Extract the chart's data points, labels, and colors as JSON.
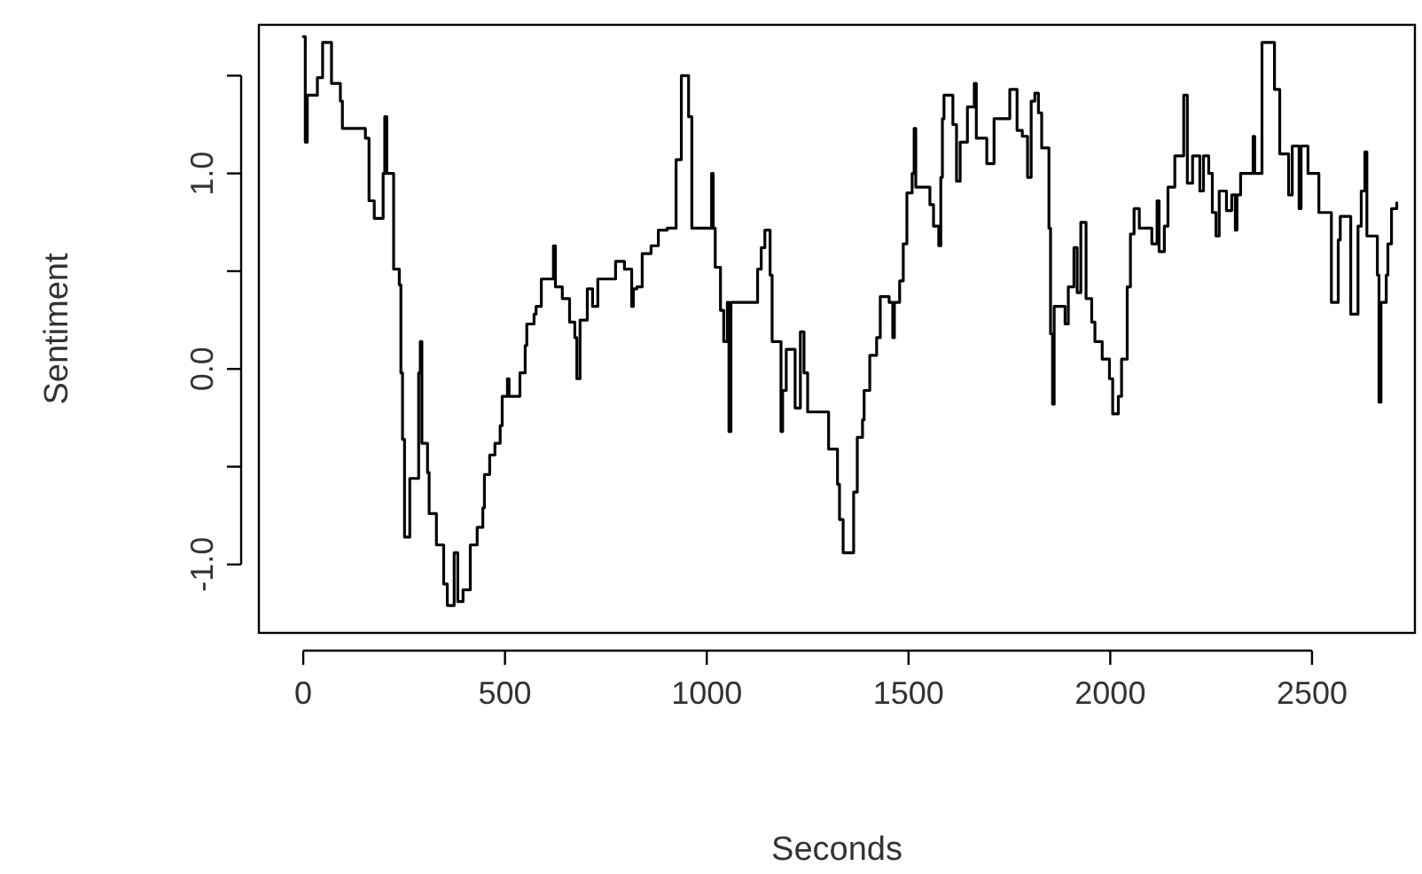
{
  "chart_data": {
    "type": "step",
    "xlabel": "Seconds",
    "ylabel": "Sentiment",
    "xlim": [
      -110,
      2755
    ],
    "ylim": [
      -1.35,
      1.76
    ],
    "xticks": [
      0,
      500,
      1000,
      1500,
      2000,
      2500
    ],
    "yticks": [
      {
        "value": -1,
        "label": "-1.0"
      },
      {
        "value": -0.5,
        "label": null
      },
      {
        "value": 0,
        "label": "0.0"
      },
      {
        "value": 0.5,
        "label": null
      },
      {
        "value": 1,
        "label": "1.0"
      },
      {
        "value": 1.5,
        "label": null
      }
    ],
    "grid": false,
    "marker": "none",
    "line_style": "solid",
    "series": [
      {
        "color": "#000000",
        "x": [
          0,
          5,
          10,
          35,
          48,
          70,
          92,
          97,
          154,
          163,
          176,
          198,
          202,
          207,
          224,
          238,
          242,
          246,
          251,
          264,
          286,
          290,
          294,
          308,
          312,
          330,
          348,
          357,
          374,
          383,
          396,
          414,
          431,
          445,
          449,
          462,
          475,
          488,
          493,
          506,
          510,
          537,
          550,
          554,
          572,
          577,
          590,
          620,
          625,
          642,
          660,
          673,
          678,
          686,
          704,
          717,
          730,
          774,
          796,
          814,
          818,
          827,
          840,
          862,
          880,
          902,
          924,
          937,
          955,
          963,
          1012,
          1016,
          1021,
          1034,
          1042,
          1051,
          1055,
          1060,
          1126,
          1135,
          1144,
          1157,
          1162,
          1184,
          1188,
          1197,
          1219,
          1232,
          1241,
          1250,
          1302,
          1324,
          1329,
          1338,
          1364,
          1373,
          1386,
          1390,
          1404,
          1421,
          1430,
          1452,
          1461,
          1465,
          1478,
          1487,
          1496,
          1509,
          1514,
          1518,
          1553,
          1562,
          1575,
          1580,
          1584,
          1588,
          1610,
          1619,
          1628,
          1646,
          1663,
          1668,
          1694,
          1712,
          1751,
          1769,
          1782,
          1795,
          1804,
          1813,
          1822,
          1830,
          1848,
          1852,
          1857,
          1861,
          1888,
          1896,
          1910,
          1918,
          1927,
          1940,
          1954,
          1962,
          1980,
          1998,
          2006,
          2020,
          2028,
          2042,
          2050,
          2059,
          2072,
          2103,
          2116,
          2121,
          2134,
          2143,
          2160,
          2182,
          2191,
          2204,
          2222,
          2231,
          2244,
          2253,
          2262,
          2270,
          2288,
          2301,
          2310,
          2314,
          2323,
          2354,
          2358,
          2376,
          2407,
          2420,
          2442,
          2451,
          2468,
          2473,
          2490,
          2517,
          2548,
          2565,
          2570,
          2596,
          2614,
          2622,
          2631,
          2636,
          2662,
          2666,
          2671,
          2684,
          2688,
          2697,
          2710
        ],
        "values": [
          1.7,
          1.16,
          1.4,
          1.49,
          1.67,
          1.46,
          1.37,
          1.23,
          1.18,
          0.86,
          0.77,
          1.0,
          1.29,
          1.0,
          0.51,
          0.43,
          -0.02,
          -0.36,
          -0.86,
          -0.56,
          -0.02,
          0.14,
          -0.38,
          -0.53,
          -0.74,
          -0.9,
          -1.1,
          -1.21,
          -0.94,
          -1.19,
          -1.13,
          -0.9,
          -0.81,
          -0.71,
          -0.54,
          -0.44,
          -0.38,
          -0.29,
          -0.14,
          -0.05,
          -0.14,
          -0.02,
          0.12,
          0.23,
          0.28,
          0.32,
          0.46,
          0.63,
          0.42,
          0.36,
          0.24,
          0.16,
          -0.05,
          0.25,
          0.41,
          0.32,
          0.46,
          0.55,
          0.51,
          0.32,
          0.41,
          0.42,
          0.59,
          0.63,
          0.71,
          0.72,
          1.07,
          1.5,
          1.29,
          0.72,
          1.0,
          0.72,
          0.52,
          0.3,
          0.14,
          0.34,
          -0.32,
          0.34,
          0.51,
          0.62,
          0.71,
          0.48,
          0.14,
          -0.32,
          -0.11,
          0.1,
          -0.2,
          0.19,
          -0.02,
          -0.22,
          -0.41,
          -0.59,
          -0.77,
          -0.94,
          -0.63,
          -0.35,
          -0.26,
          -0.11,
          0.07,
          0.16,
          0.37,
          0.34,
          0.16,
          0.34,
          0.45,
          0.64,
          0.9,
          1.0,
          1.23,
          0.93,
          0.84,
          0.73,
          0.63,
          0.98,
          1.28,
          1.4,
          1.25,
          0.96,
          1.16,
          1.34,
          1.46,
          1.18,
          1.05,
          1.28,
          1.43,
          1.22,
          1.19,
          0.98,
          1.37,
          1.41,
          1.31,
          1.13,
          0.72,
          0.18,
          -0.18,
          0.32,
          0.23,
          0.42,
          0.62,
          0.39,
          0.75,
          0.36,
          0.24,
          0.14,
          0.05,
          -0.05,
          -0.23,
          -0.14,
          0.05,
          0.42,
          0.69,
          0.82,
          0.72,
          0.64,
          0.86,
          0.6,
          0.73,
          0.93,
          1.09,
          1.4,
          0.95,
          1.09,
          0.91,
          1.09,
          1.0,
          0.8,
          0.68,
          0.91,
          0.81,
          0.89,
          0.71,
          0.89,
          1.0,
          1.19,
          1.0,
          1.67,
          1.43,
          1.1,
          0.89,
          1.14,
          0.82,
          1.14,
          1.0,
          0.8,
          0.34,
          0.66,
          0.78,
          0.28,
          0.73,
          0.91,
          1.11,
          0.68,
          0.48,
          -0.17,
          0.34,
          0.48,
          0.64,
          0.82,
          0.85
        ]
      }
    ]
  }
}
